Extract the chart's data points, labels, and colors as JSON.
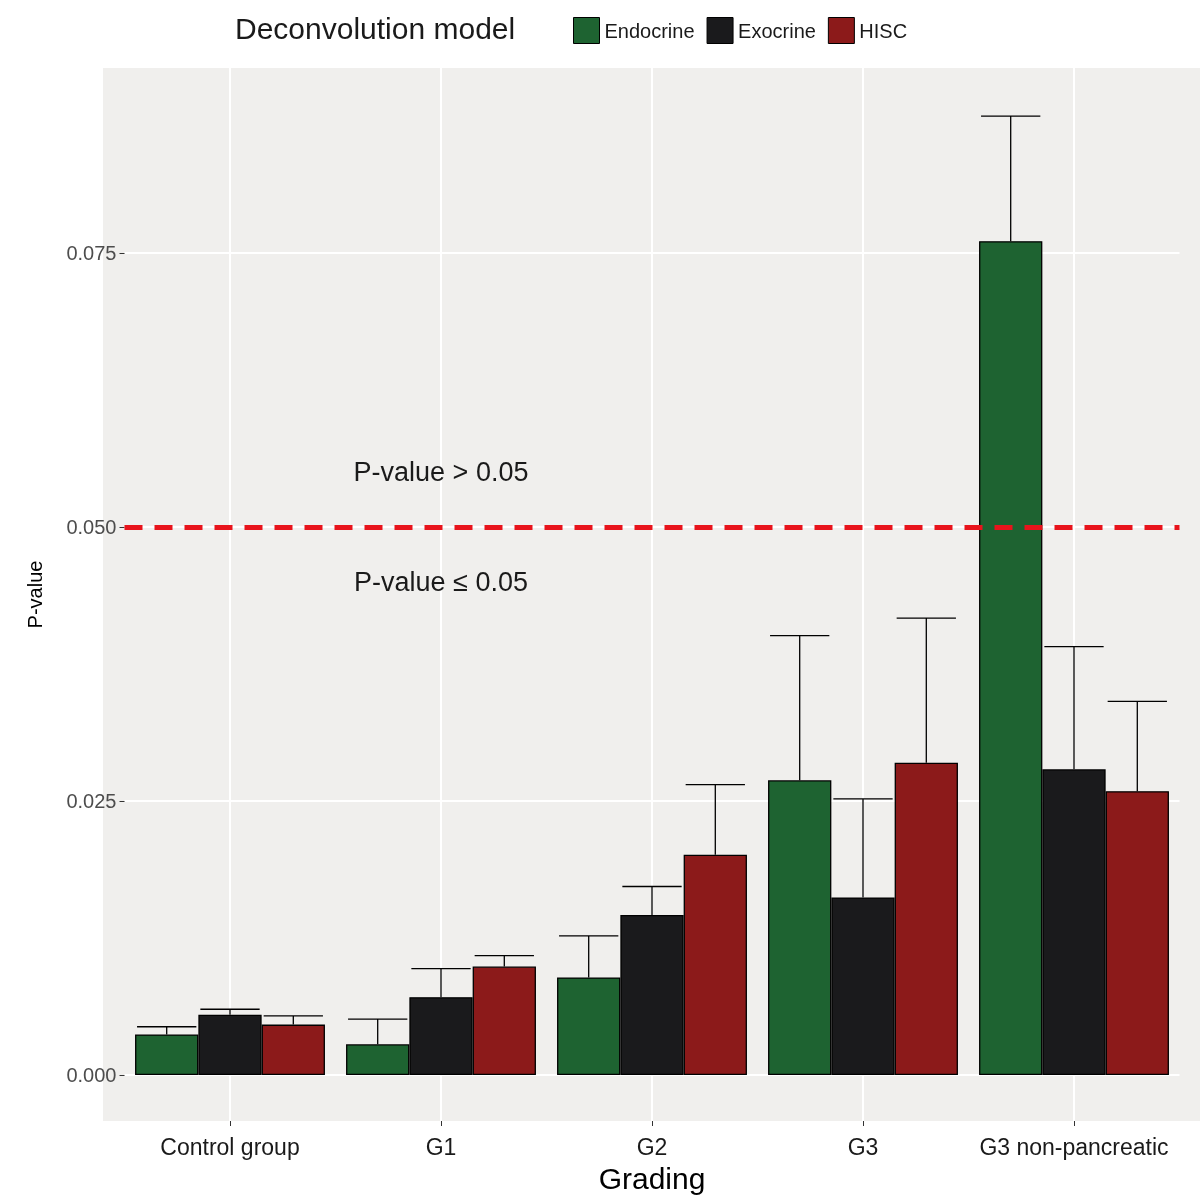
{
  "chart_data": {
    "type": "bar",
    "xlabel": "Grading",
    "ylabel": "P-value",
    "legend_title": "Deconvolution model",
    "categories": [
      "Control group",
      "G1",
      "G2",
      "G3",
      "G3 non-pancreatic"
    ],
    "series": [
      {
        "name": "Endocrine",
        "color": "#1e6331",
        "values": [
          0.0037,
          0.0028,
          0.0089,
          0.0269,
          0.0761
        ],
        "errors": [
          [
            0.0037,
            0.0044
          ],
          [
            0.0028,
            0.0051
          ],
          [
            0.0089,
            0.0127
          ],
          [
            0.0269,
            0.0401
          ],
          [
            0.0761,
            0.0875
          ]
        ]
      },
      {
        "name": "Exocrine",
        "color": "#1a1a1c",
        "values": [
          0.0055,
          0.0071,
          0.0146,
          0.0162,
          0.0279
        ],
        "errors": [
          [
            0.0055,
            0.006
          ],
          [
            0.0071,
            0.0097
          ],
          [
            0.0146,
            0.0172
          ],
          [
            0.0162,
            0.0252
          ],
          [
            0.0279,
            0.0391
          ]
        ]
      },
      {
        "name": "HISC",
        "color": "#8c1a1a",
        "values": [
          0.0046,
          0.0099,
          0.0201,
          0.0285,
          0.0259
        ],
        "errors": [
          [
            0.0046,
            0.0054
          ],
          [
            0.0099,
            0.0109
          ],
          [
            0.0201,
            0.0265
          ],
          [
            0.0285,
            0.0417
          ],
          [
            0.0259,
            0.0341
          ]
        ]
      }
    ],
    "ylim": [
      -0.0042,
      0.0919
    ],
    "yticks": [
      {
        "value": 0,
        "label": "0.000"
      },
      {
        "value": 0.025,
        "label": "0.025"
      },
      {
        "value": 0.05,
        "label": "0.050"
      },
      {
        "value": 0.075,
        "label": "0.075"
      }
    ],
    "ref_lines": [
      {
        "axis": "y",
        "value": 0.05,
        "color": "#e8141c",
        "line_style": "dashed"
      }
    ],
    "annotations": [
      "P-value > 0.05",
      "P-value ≤ 0.05"
    ],
    "grid": true,
    "legend": "top"
  }
}
